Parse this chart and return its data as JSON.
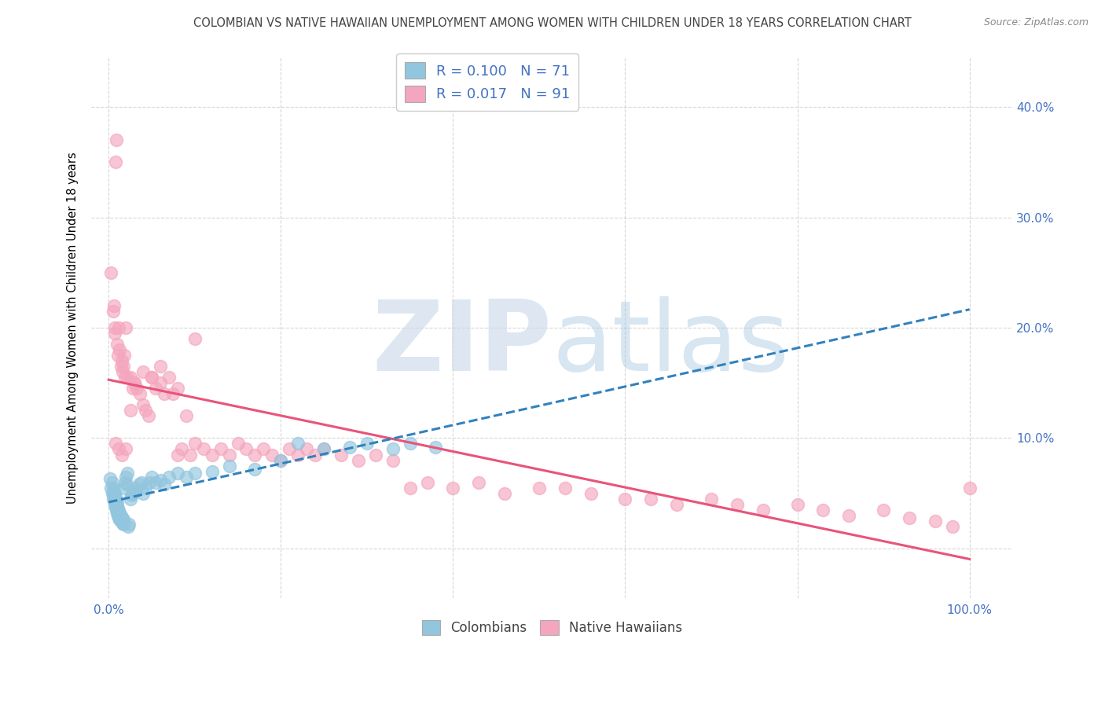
{
  "title": "COLOMBIAN VS NATIVE HAWAIIAN UNEMPLOYMENT AMONG WOMEN WITH CHILDREN UNDER 18 YEARS CORRELATION CHART",
  "source": "Source: ZipAtlas.com",
  "ylabel_label": "Unemployment Among Women with Children Under 18 years",
  "xlim": [
    -0.02,
    1.05
  ],
  "ylim": [
    -0.045,
    0.445
  ],
  "R_colombian": 0.1,
  "N_colombian": 71,
  "R_hawaiian": 0.017,
  "N_hawaiian": 91,
  "colombian_color": "#92c5de",
  "hawaiian_color": "#f4a6be",
  "trendline_colombian_color": "#3182bd",
  "trendline_hawaiian_color": "#e8547a",
  "legend_label_colombian": "Colombians",
  "legend_label_hawaiian": "Native Hawaiians",
  "colombian_x": [
    0.002,
    0.003,
    0.004,
    0.004,
    0.005,
    0.005,
    0.005,
    0.006,
    0.006,
    0.007,
    0.007,
    0.007,
    0.008,
    0.008,
    0.008,
    0.009,
    0.009,
    0.009,
    0.01,
    0.01,
    0.01,
    0.011,
    0.011,
    0.012,
    0.012,
    0.013,
    0.013,
    0.014,
    0.014,
    0.015,
    0.015,
    0.016,
    0.016,
    0.017,
    0.017,
    0.018,
    0.019,
    0.02,
    0.021,
    0.022,
    0.023,
    0.024,
    0.025,
    0.026,
    0.028,
    0.03,
    0.032,
    0.035,
    0.038,
    0.04,
    0.043,
    0.047,
    0.05,
    0.055,
    0.06,
    0.065,
    0.07,
    0.08,
    0.09,
    0.1,
    0.12,
    0.14,
    0.17,
    0.2,
    0.22,
    0.25,
    0.28,
    0.3,
    0.33,
    0.35,
    0.38
  ],
  "colombian_y": [
    0.063,
    0.055,
    0.06,
    0.05,
    0.045,
    0.05,
    0.055,
    0.048,
    0.052,
    0.04,
    0.045,
    0.05,
    0.038,
    0.042,
    0.046,
    0.035,
    0.04,
    0.044,
    0.032,
    0.038,
    0.042,
    0.03,
    0.036,
    0.028,
    0.034,
    0.026,
    0.032,
    0.025,
    0.03,
    0.024,
    0.028,
    0.023,
    0.027,
    0.022,
    0.026,
    0.055,
    0.06,
    0.065,
    0.058,
    0.068,
    0.02,
    0.022,
    0.045,
    0.048,
    0.05,
    0.052,
    0.055,
    0.058,
    0.06,
    0.05,
    0.055,
    0.06,
    0.065,
    0.06,
    0.062,
    0.058,
    0.065,
    0.068,
    0.065,
    0.068,
    0.07,
    0.075,
    0.072,
    0.08,
    0.095,
    0.09,
    0.092,
    0.095,
    0.09,
    0.095,
    0.092
  ],
  "hawaiian_x": [
    0.003,
    0.005,
    0.006,
    0.007,
    0.007,
    0.008,
    0.009,
    0.01,
    0.011,
    0.012,
    0.013,
    0.014,
    0.015,
    0.016,
    0.017,
    0.018,
    0.019,
    0.02,
    0.022,
    0.025,
    0.028,
    0.03,
    0.033,
    0.036,
    0.04,
    0.043,
    0.046,
    0.05,
    0.055,
    0.06,
    0.065,
    0.07,
    0.075,
    0.08,
    0.085,
    0.09,
    0.095,
    0.1,
    0.11,
    0.12,
    0.13,
    0.14,
    0.15,
    0.16,
    0.17,
    0.18,
    0.19,
    0.2,
    0.21,
    0.22,
    0.23,
    0.24,
    0.25,
    0.27,
    0.29,
    0.31,
    0.33,
    0.35,
    0.37,
    0.4,
    0.43,
    0.46,
    0.5,
    0.53,
    0.56,
    0.6,
    0.63,
    0.66,
    0.7,
    0.73,
    0.76,
    0.8,
    0.83,
    0.86,
    0.9,
    0.93,
    0.96,
    0.98,
    1.0,
    0.008,
    0.012,
    0.015,
    0.02,
    0.025,
    0.03,
    0.04,
    0.05,
    0.06,
    0.08,
    0.1
  ],
  "hawaiian_y": [
    0.25,
    0.215,
    0.22,
    0.2,
    0.195,
    0.35,
    0.37,
    0.185,
    0.175,
    0.2,
    0.18,
    0.165,
    0.17,
    0.16,
    0.165,
    0.175,
    0.155,
    0.2,
    0.155,
    0.155,
    0.145,
    0.15,
    0.145,
    0.14,
    0.13,
    0.125,
    0.12,
    0.155,
    0.145,
    0.15,
    0.14,
    0.155,
    0.14,
    0.085,
    0.09,
    0.12,
    0.085,
    0.095,
    0.09,
    0.085,
    0.09,
    0.085,
    0.095,
    0.09,
    0.085,
    0.09,
    0.085,
    0.08,
    0.09,
    0.085,
    0.09,
    0.085,
    0.09,
    0.085,
    0.08,
    0.085,
    0.08,
    0.055,
    0.06,
    0.055,
    0.06,
    0.05,
    0.055,
    0.055,
    0.05,
    0.045,
    0.045,
    0.04,
    0.045,
    0.04,
    0.035,
    0.04,
    0.035,
    0.03,
    0.035,
    0.028,
    0.025,
    0.02,
    0.055,
    0.095,
    0.09,
    0.085,
    0.09,
    0.125,
    0.15,
    0.16,
    0.155,
    0.165,
    0.145,
    0.19
  ],
  "ytick_positions": [
    0.0,
    0.1,
    0.2,
    0.3,
    0.4
  ],
  "ytick_labels": [
    "",
    "10.0%",
    "20.0%",
    "30.0%",
    "40.0%"
  ],
  "xtick_positions": [
    0.0,
    0.2,
    0.4,
    0.6,
    0.8,
    1.0
  ],
  "xtick_labels_show": [
    "0.0%",
    "",
    "",
    "",
    "",
    "100.0%"
  ]
}
